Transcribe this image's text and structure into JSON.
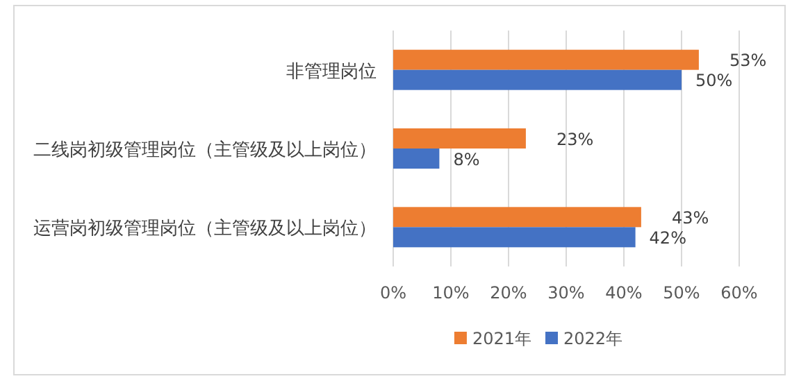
{
  "chart_data": {
    "type": "bar",
    "orientation": "horizontal",
    "categories": [
      "非管理岗位",
      "二线岗初级管理岗位（主管级及以上岗位）",
      "运营岗初级管理岗位（主管级及以上岗位）"
    ],
    "series": [
      {
        "name": "2021年",
        "color": "#ed7d31",
        "values": [
          53,
          23,
          43
        ],
        "value_labels": [
          "53%",
          "23%",
          "43%"
        ]
      },
      {
        "name": "2022年",
        "color": "#4472c4",
        "values": [
          50,
          8,
          42
        ],
        "value_labels": [
          "50%",
          "8%",
          "42%"
        ]
      }
    ],
    "xlim": [
      0,
      60
    ],
    "xticks": [
      {
        "value": 0,
        "label": "0%"
      },
      {
        "value": 10,
        "label": "10%"
      },
      {
        "value": 20,
        "label": "20%"
      },
      {
        "value": 30,
        "label": "30%"
      },
      {
        "value": 40,
        "label": "40%"
      },
      {
        "value": 50,
        "label": "50%"
      },
      {
        "value": 60,
        "label": "60%"
      }
    ],
    "grid": "x",
    "legend": "bottom"
  }
}
